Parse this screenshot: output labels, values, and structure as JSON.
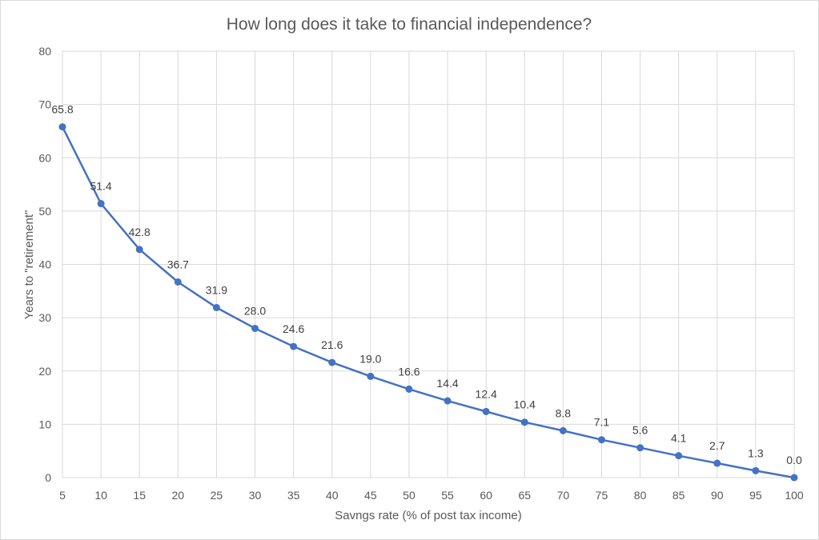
{
  "chart_data": {
    "type": "line",
    "title": "How long does it take to financial independence?",
    "xlabel": "Savngs rate (% of post tax income)",
    "ylabel": "Years  to \"retirement\"",
    "x": [
      5,
      10,
      15,
      20,
      25,
      30,
      35,
      40,
      45,
      50,
      55,
      60,
      65,
      70,
      75,
      80,
      85,
      90,
      95,
      100
    ],
    "x_tick_labels": [
      "5",
      "10",
      "15",
      "20",
      "25",
      "30",
      "35",
      "40",
      "45",
      "50",
      "55",
      "60",
      "65",
      "70",
      "75",
      "80",
      "85",
      "90",
      "95",
      "100"
    ],
    "series": [
      {
        "values": [
          65.8,
          51.4,
          42.8,
          36.7,
          31.9,
          28.0,
          24.6,
          21.6,
          19.0,
          16.6,
          14.4,
          12.4,
          10.4,
          8.8,
          7.1,
          5.6,
          4.1,
          2.7,
          1.3,
          0.0
        ],
        "labels": [
          "65.8",
          "51.4",
          "42.8",
          "36.7",
          "31.9",
          "28.0",
          "24.6",
          "21.6",
          "19.0",
          "16.6",
          "14.4",
          "12.4",
          "10.4",
          "8.8",
          "7.1",
          "5.6",
          "4.1",
          "2.7",
          "1.3",
          "0.0"
        ],
        "color": "#4472C4"
      }
    ],
    "ylim": [
      0,
      80
    ],
    "y_ticks": [
      0,
      10,
      20,
      30,
      40,
      50,
      60,
      70,
      80
    ],
    "y_tick_labels": [
      "0",
      "10",
      "20",
      "30",
      "40",
      "50",
      "60",
      "70",
      "80"
    ],
    "grid": true,
    "legend": false,
    "colors": {
      "line": "#4472C4",
      "grid": "#d9d9d9",
      "text": "#595959"
    }
  }
}
